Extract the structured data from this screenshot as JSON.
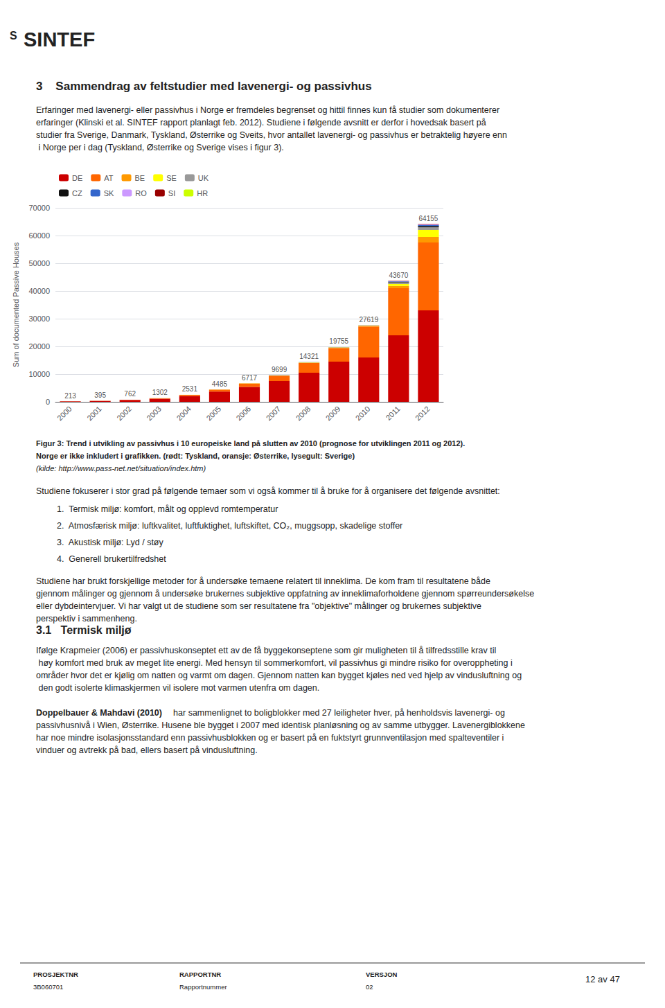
{
  "chart_data": {
    "type": "bar",
    "stacked": true,
    "categories": [
      "2000",
      "2001",
      "2002",
      "2003",
      "2004",
      "2005",
      "2006",
      "2007",
      "2008",
      "2009",
      "2010",
      "2011",
      "2012"
    ],
    "series": [
      {
        "name": "DE",
        "color": "#cc0000",
        "values": [
          180,
          340,
          660,
          1100,
          2100,
          3700,
          5400,
          7500,
          10500,
          14500,
          16000,
          24000,
          33000
        ]
      },
      {
        "name": "AT",
        "color": "#ff6600",
        "values": [
          30,
          50,
          90,
          180,
          400,
          700,
          1200,
          1900,
          3500,
          4900,
          11200,
          17000,
          24500
        ]
      },
      {
        "name": "BE",
        "color": "#ff9900",
        "values": [
          0,
          0,
          5,
          10,
          15,
          30,
          50,
          80,
          100,
          150,
          200,
          800,
          2000
        ]
      },
      {
        "name": "SE",
        "color": "#ffff00",
        "values": [
          0,
          0,
          0,
          5,
          10,
          30,
          40,
          60,
          100,
          100,
          100,
          700,
          2500
        ]
      },
      {
        "name": "UK",
        "color": "#999999",
        "values": [
          0,
          0,
          0,
          0,
          0,
          10,
          10,
          100,
          50,
          55,
          60,
          600,
          1000
        ]
      },
      {
        "name": "CZ",
        "color": "#111111",
        "values": [
          0,
          0,
          0,
          0,
          0,
          5,
          5,
          5,
          10,
          20,
          25,
          150,
          450
        ]
      },
      {
        "name": "SK",
        "color": "#3366cc",
        "values": [
          0,
          0,
          0,
          0,
          0,
          5,
          5,
          30,
          40,
          10,
          10,
          200,
          350
        ]
      },
      {
        "name": "RO",
        "color": "#cc99ff",
        "values": [
          0,
          0,
          0,
          0,
          0,
          0,
          0,
          10,
          10,
          10,
          10,
          100,
          200
        ]
      },
      {
        "name": "SI",
        "color": "#990000",
        "values": [
          3,
          5,
          7,
          7,
          6,
          5,
          7,
          14,
          11,
          10,
          14,
          120,
          155
        ]
      },
      {
        "name": "HR",
        "color": "#ccff00",
        "values": [
          0,
          0,
          0,
          0,
          0,
          0,
          0,
          0,
          0,
          1,
          0,
          0,
          0
        ]
      }
    ],
    "totals": [
      213,
      395,
      762,
      1302,
      2531,
      4485,
      6717,
      9699,
      14321,
      19755,
      27619,
      43670,
      64155
    ],
    "data_labels": true,
    "ylabel": "Sum of documented Passive Houses",
    "ylim": [
      0,
      70000
    ],
    "yticks": [
      0,
      10000,
      20000,
      30000,
      40000,
      50000,
      60000,
      70000
    ],
    "grid": true,
    "legend": "upper left",
    "annotations": [
      "S",
      "SINTEF",
      "3    Sammendrag av feltstudier med lavenergi- og passivhus",
      "Erfaringer med lavenergi- eller passivhus i Norge er fremdeles begrenset og hittil finnes kun få studier som dokumenterer erfaringer (Klinski et al. SINTEF rapport planlagt feb. 2012). Studiene i følgende avsnitt er derfor i hovedsak basert på studier fra Sverige, Danmark, Tyskland, Østerrike og Sveits, hvor antallet lavenergi- og passivhus er betraktelig høyere enn i Norge per i dag (Tyskland, Østerrike og Sverige vises i figur 3).",
      "Figur 3: Trend i utvikling av passivhus i 10 europeiske land på slutten av 2010 (prognose for utviklingen 2011 og 2012).",
      "Norge er ikke inkludert i grafikken. (rødt: Tyskland, oransje: Østerrike, lysegult: Sverige)",
      "(kilde: http://www.pass-net.net/situation/index.htm)",
      "Studiene fokuserer i stor grad på følgende temaer som vi også kommer til å bruke for å organisere det følgende avsnittet:",
      "1.  Termisk miljø: komfort, målt og opplevd romtemperatur",
      "2.  Atmosfærisk miljø: luftkvalitet, luftfuktighet, luftskiftet, CO₂, muggsopp, skadelige stoffer",
      "3.  Akustisk miljø: Lyd / støy",
      "4.  Generell brukertilfredshet",
      "Studiene har brukt forskjellige metoder for å undersøke temaene relatert til inneklima. De kom fram til resultatene både gjennom målinger og gjennom å undersøke brukernes subjektive oppfatning av inneklimaforholdene gjennom spørreundersøkelse eller dybdeintervjuer. Vi har valgt ut de studiene som ser resultatene fra \"objektive\" målinger og brukernes subjektive perspektiv i sammenheng.",
      "3.1   Termisk miljø",
      "Ifølge Krapmeier (2006) er passivhuskonseptet ett av de få byggekonseptene som gir muligheten til å tilfredsstille krav til høy komfort med bruk av meget lite energi. Med hensyn til sommerkomfort, vil passivhus gi mindre risiko for overoppheting i områder hvor det er kjølig om natten og varmt om dagen. Gjennom natten kan bygget kjøles ned ved hjelp av vindusluftning og den godt isolerte klimaskjermen vil isolere mot varmen utenfra om dagen.",
      "Doppelbauer & Mahdavi (2010)",
      " har sammenlignet to boligblokker med 27 leiligheter hver, på henholdsvis lavenergi- og passivhusnivå i Wien, Østerrike. Husene ble bygget i 2007 med identisk planløsning og av samme utbygger. Lavenergiblokkene har noe mindre isolasjonsstandard enn passivhusblokken og er basert på en fuktstyrt grunnventilasjon med spalteventiler i vinduer og avtrekk på bad, ellers basert på vindusluftning.",
      "PROSJEKTNR",
      "3B060701",
      "RAPPORTNR",
      "Rapportnummer",
      "VERSJON",
      "02",
      "12 av 47"
    ]
  }
}
